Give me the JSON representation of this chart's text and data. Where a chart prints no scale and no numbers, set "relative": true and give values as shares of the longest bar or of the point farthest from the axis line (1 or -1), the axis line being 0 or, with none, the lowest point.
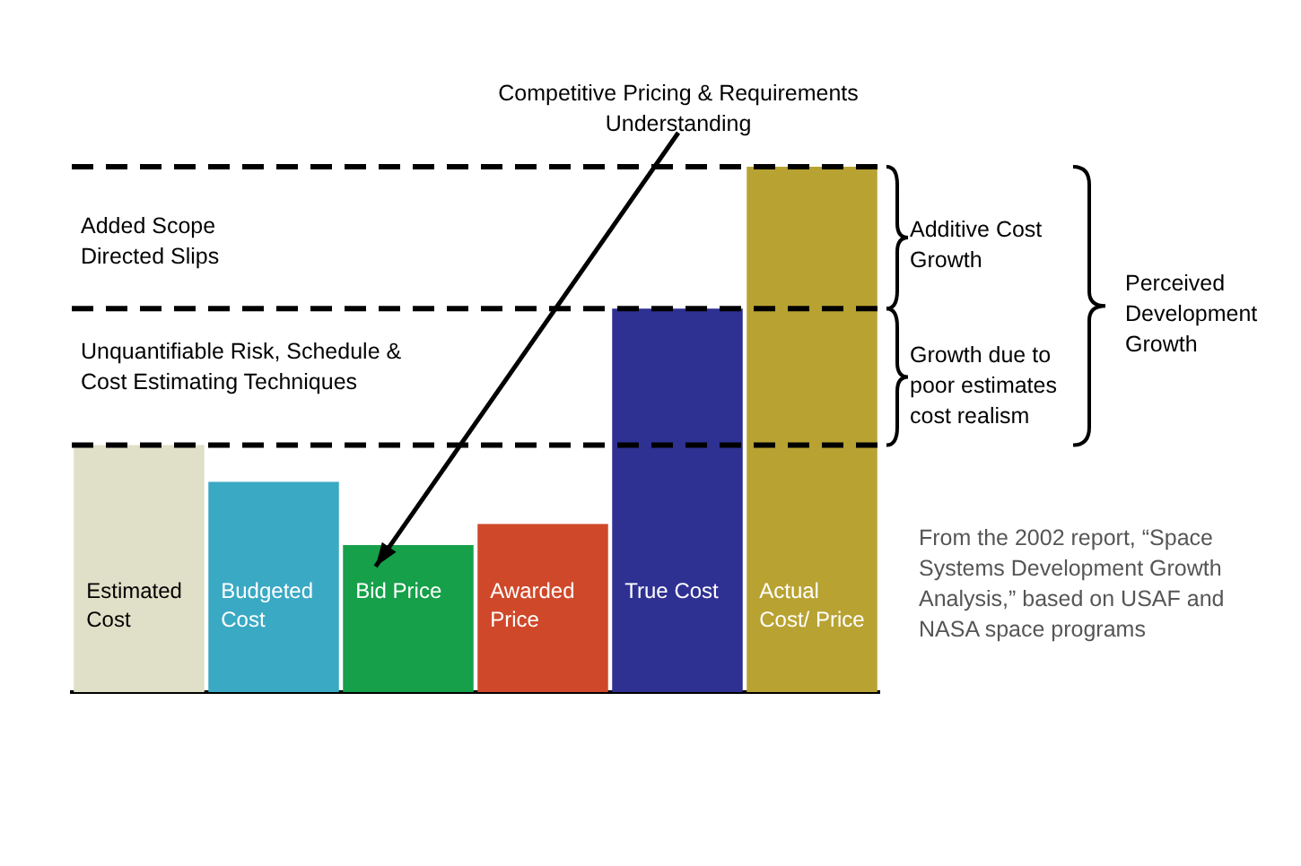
{
  "chart_data": {
    "type": "bar",
    "relative": true,
    "categories": [
      "Estimated Cost",
      "Budgeted Cost",
      "Bid Price",
      "Awarded Price",
      "True Cost",
      "Actual Cost/ Price"
    ],
    "values": [
      0.47,
      0.4,
      0.28,
      0.32,
      0.73,
      1
    ],
    "colors": [
      "#e0dfc8",
      "#3aa9c4",
      "#16a04a",
      "#d0482a",
      "#2e3192",
      "#b8a232"
    ],
    "ref_lines": [
      {
        "axis": "y",
        "value": 0.47,
        "line_style": "dashed"
      },
      {
        "axis": "y",
        "value": 0.73,
        "line_style": "dashed"
      },
      {
        "axis": "y",
        "value": 1,
        "line_style": "dashed"
      }
    ],
    "annotations": [
      "Competitive Pricing & Requirements Understanding",
      "Added Scope Directed Slips",
      "Unquantifiable Risk, Schedule & Cost Estimating Techniques",
      "Additive Cost Growth",
      "Growth due to poor estimates cost realism",
      "Perceived Development Growth",
      "From the 2002 report, “Space Systems Development Growth Analysis,” based on USAF and NASA space programs"
    ]
  }
}
